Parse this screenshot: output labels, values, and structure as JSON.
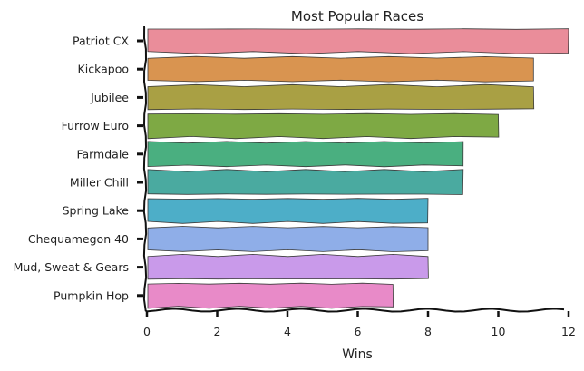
{
  "chart_data": {
    "type": "bar",
    "orientation": "horizontal",
    "title": "Most Popular Races",
    "xlabel": "Wins",
    "ylabel": "",
    "xlim": [
      0,
      12
    ],
    "xticks": [
      0,
      2,
      4,
      6,
      8,
      10,
      12
    ],
    "grid": false,
    "legend": "none",
    "categories": [
      "Patriot CX",
      "Kickapoo",
      "Jubilee",
      "Furrow Euro",
      "Farmdale",
      "Miller Chill",
      "Spring Lake",
      "Chequamegon 40",
      "Mud, Sweat & Gears",
      "Pumpkin Hop"
    ],
    "values": [
      12,
      11,
      11,
      10,
      9,
      9,
      8,
      8,
      8,
      7
    ],
    "colors": [
      "#ea8d9a",
      "#d99450",
      "#a9a044",
      "#7ea944",
      "#4aaf80",
      "#4aaaa0",
      "#4daec8",
      "#8faee8",
      "#c99aea",
      "#e88ac8"
    ]
  }
}
